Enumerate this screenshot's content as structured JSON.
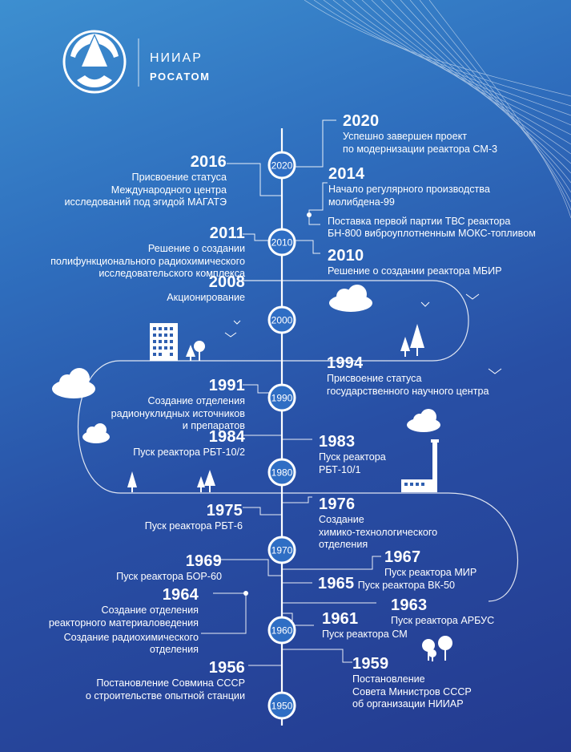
{
  "brand": {
    "name": "НИИАР",
    "org": "РОСАТОМ"
  },
  "decades": [
    "2020",
    "2010",
    "2000",
    "1990",
    "1980",
    "1970",
    "1960",
    "1950"
  ],
  "events": {
    "e2020": {
      "year": "2020",
      "text": "Успешно завершен проект\nпо модернизации реактора СМ-3"
    },
    "e2016": {
      "year": "2016",
      "text": "Присвоение статуса\nМеждународного центра\nисследований под эгидой МАГАТЭ"
    },
    "e2014": {
      "year": "2014",
      "text": "Начало регулярного производства\nмолибдена-99"
    },
    "e2014b": {
      "text": "Поставка первой партии ТВС реактора\nБН-800 виброуплотненным МОКС-топливом"
    },
    "e2011": {
      "year": "2011",
      "text": "Решение о создании\nполифункционального радиохимического\nисследовательского комплекса"
    },
    "e2010": {
      "year": "2010",
      "text": "Решение о создании реактора МБИР"
    },
    "e2008": {
      "year": "2008",
      "text": "Акционирование"
    },
    "e1994": {
      "year": "1994",
      "text": "Присвоение статуса\nгосударственного научного центра"
    },
    "e1991": {
      "year": "1991",
      "text": "Создание отделения\nрадионуклидных источников\nи препаратов"
    },
    "e1984": {
      "year": "1984",
      "text": "Пуск реактора РБТ-10/2"
    },
    "e1983": {
      "year": "1983",
      "text": "Пуск реактора\nРБТ-10/1"
    },
    "e1975": {
      "year": "1975",
      "text": "Пуск реактора РБТ-6"
    },
    "e1976": {
      "year": "1976",
      "text": "Создание\nхимико-технологического\nотделения"
    },
    "e1969": {
      "year": "1969",
      "text": "Пуск реактора БОР-60"
    },
    "e1967": {
      "year": "1967",
      "text": "Пуск реактора МИР"
    },
    "e1965": {
      "year": "1965",
      "text": "Пуск реактора ВК-50"
    },
    "e1964": {
      "year": "1964",
      "text": "Создание отделения\nреакторного материаловедения"
    },
    "e1964b": {
      "text": "Создание радиохимического\nотделения"
    },
    "e1963": {
      "year": "1963",
      "text": "Пуск реактора АРБУС"
    },
    "e1961": {
      "year": "1961",
      "text": "Пуск реактора СМ"
    },
    "e1956": {
      "year": "1956",
      "text": "Постановление Совмина СССР\nо строительстве опытной станции"
    },
    "e1959": {
      "year": "1959",
      "text": "Постановление\nСовета Министров СССР\nоб организации НИИАР"
    }
  }
}
